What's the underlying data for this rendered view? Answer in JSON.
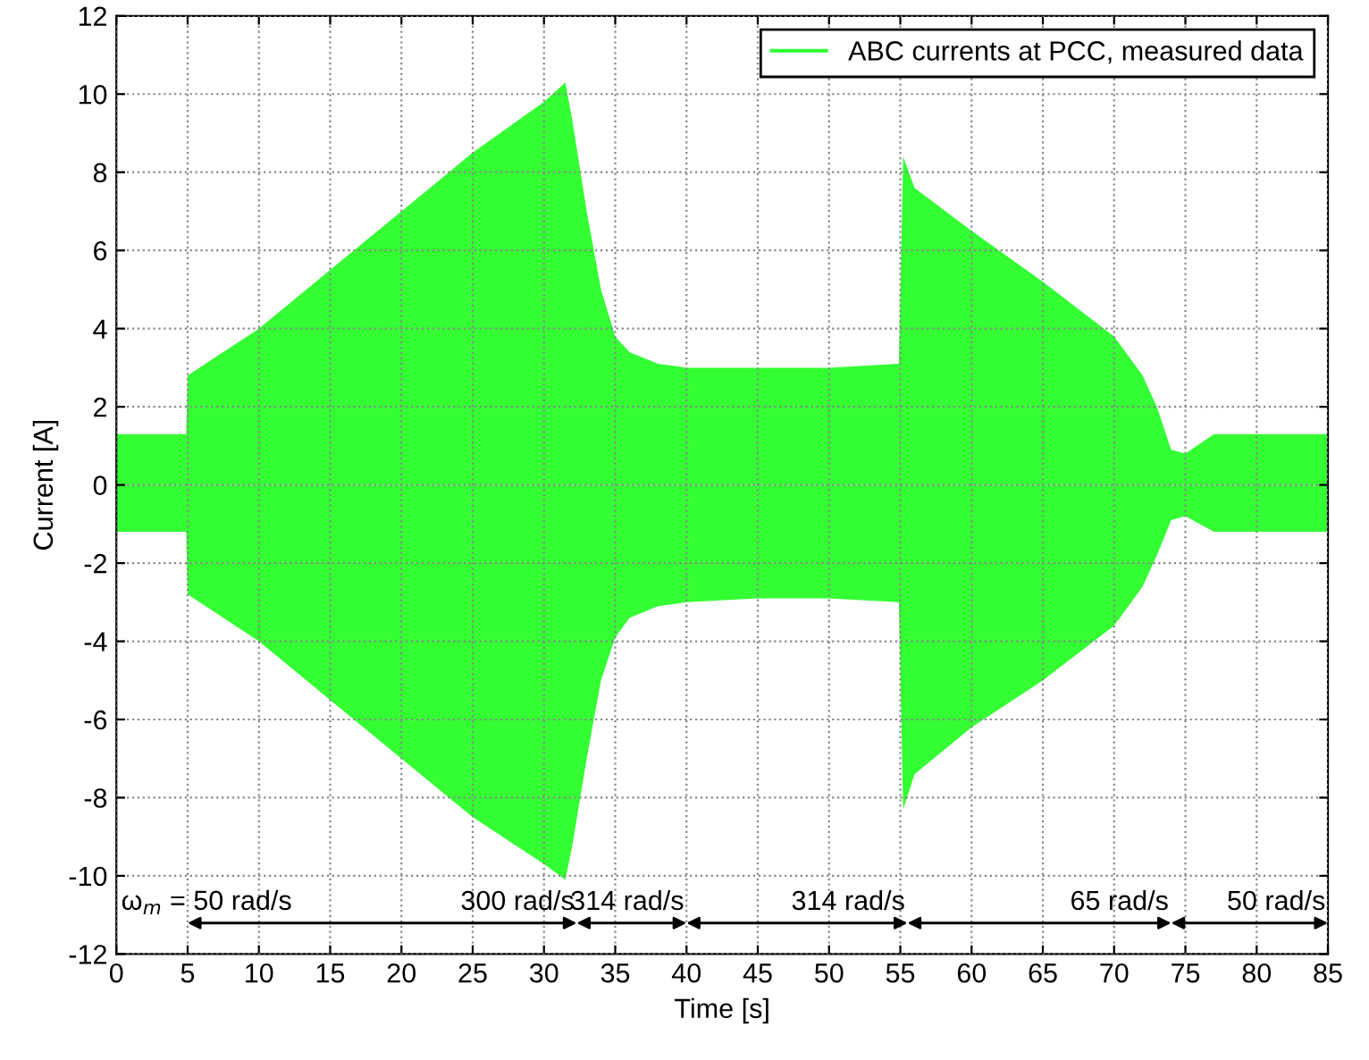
{
  "chart_data": {
    "type": "area",
    "xlabel": "Time [s]",
    "ylabel": "Current [A]",
    "xlim": [
      0,
      85
    ],
    "xticks": [
      0,
      5,
      10,
      15,
      20,
      25,
      30,
      35,
      40,
      45,
      50,
      55,
      60,
      65,
      70,
      75,
      80,
      85
    ],
    "ylim": [
      -12,
      12
    ],
    "yticks": [
      -12,
      -10,
      -8,
      -6,
      -4,
      -2,
      0,
      2,
      4,
      6,
      8,
      10,
      12
    ],
    "grid": true,
    "legend": "top right",
    "line_style": "dotted",
    "series": [
      {
        "name": "ABC currents at PCC, measured data",
        "color": "#33ff33",
        "x": [
          0,
          4.9,
          5,
          10,
          15,
          20,
          25,
          30,
          31.5,
          32,
          33,
          34,
          35,
          36,
          38,
          40,
          45,
          50,
          54.9,
          55.2,
          56,
          60,
          65,
          70,
          72,
          73,
          74,
          75,
          77,
          80,
          85
        ],
        "values": [
          1.3,
          1.3,
          2.8,
          4.0,
          5.5,
          7.0,
          8.5,
          9.8,
          10.3,
          9.3,
          7.0,
          5.0,
          3.8,
          3.4,
          3.1,
          3.0,
          3.0,
          3.0,
          3.1,
          8.4,
          7.6,
          6.5,
          5.2,
          3.8,
          2.8,
          2.0,
          0.9,
          0.8,
          1.3,
          1.3,
          1.3
        ],
        "type": "area"
      },
      {
        "color": "#33ff33",
        "x": [
          0,
          4.9,
          5,
          10,
          15,
          20,
          25,
          30,
          31.5,
          32,
          33,
          34,
          35,
          36,
          38,
          40,
          45,
          50,
          54.9,
          55.2,
          56,
          60,
          65,
          70,
          72,
          73,
          74,
          75,
          77,
          80,
          85
        ],
        "values": [
          -1.2,
          -1.2,
          -2.8,
          -4.0,
          -5.5,
          -7.0,
          -8.5,
          -9.7,
          -10.1,
          -9.2,
          -7.0,
          -5.0,
          -3.9,
          -3.4,
          -3.1,
          -3.0,
          -2.9,
          -2.9,
          -3.0,
          -8.3,
          -7.4,
          -6.2,
          -5.0,
          -3.6,
          -2.6,
          -1.8,
          -0.9,
          -0.8,
          -1.2,
          -1.2,
          -1.2
        ]
      }
    ],
    "annotations": [
      "ω$_{m}$ = 50 rad/s",
      "300 rad/s",
      "314 rad/s",
      "314 rad/s",
      "65 rad/s",
      "50 rad/s"
    ]
  }
}
